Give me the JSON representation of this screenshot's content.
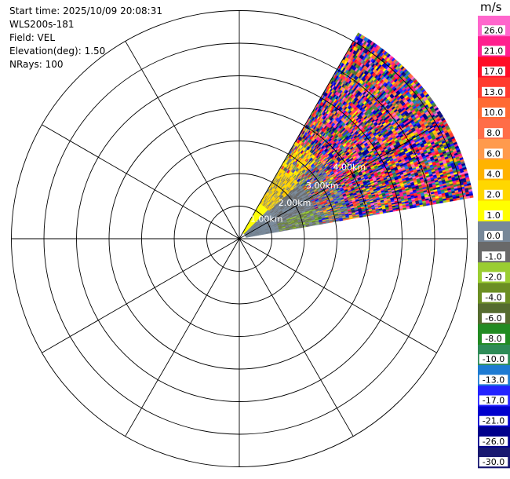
{
  "header": {
    "start_time": "Start time: 2025/10/09 20:08:31",
    "station": "WLS200s-181",
    "field": "Field: VEL",
    "elevation": "Elevation(deg): 1.50",
    "nrays": "NRays: 100"
  },
  "chart_data": {
    "type": "heatmap",
    "projection": "polar-ppi",
    "range_ring_labels": [
      "1.00km",
      "2.00km",
      "3.00km",
      "4.00km"
    ],
    "rings_km": [
      1,
      2,
      3,
      4,
      5,
      6,
      7
    ],
    "spokes_every_deg": 30,
    "sector_azimuth_deg": [
      30,
      80
    ],
    "max_range_km": 7.3,
    "nrays": 100,
    "elevation_deg": 1.5,
    "colorbar": {
      "unit": "m/s",
      "tick_labels": [
        "26.0",
        "21.0",
        "17.0",
        "13.0",
        "10.0",
        "8.0",
        "6.0",
        "4.0",
        "2.0",
        "1.0",
        "0.0",
        "-1.0",
        "-2.0",
        "-4.0",
        "-6.0",
        "-8.0",
        "-10.0",
        "-13.0",
        "-17.0",
        "-21.0",
        "-26.0",
        "-30.0"
      ],
      "bins": [
        {
          "lo": 26,
          "hi": 30,
          "color": "#ff66cc"
        },
        {
          "lo": 21,
          "hi": 26,
          "color": "#ff1f8e"
        },
        {
          "lo": 17,
          "hi": 21,
          "color": "#ff0d26"
        },
        {
          "lo": 13,
          "hi": 17,
          "color": "#ff3b2e"
        },
        {
          "lo": 10,
          "hi": 13,
          "color": "#ff6a33"
        },
        {
          "lo": 8,
          "hi": 10,
          "color": "#ff6d48"
        },
        {
          "lo": 6,
          "hi": 8,
          "color": "#ff9a4d"
        },
        {
          "lo": 4,
          "hi": 6,
          "color": "#ffb300"
        },
        {
          "lo": 2,
          "hi": 4,
          "color": "#ffd700"
        },
        {
          "lo": 1,
          "hi": 2,
          "color": "#ffff00"
        },
        {
          "lo": 0,
          "hi": 1,
          "color": "#778899"
        },
        {
          "lo": -1,
          "hi": 0,
          "color": "#696969"
        },
        {
          "lo": -2,
          "hi": -1,
          "color": "#9acd32"
        },
        {
          "lo": -4,
          "hi": -2,
          "color": "#6b8e23"
        },
        {
          "lo": -6,
          "hi": -4,
          "color": "#556b2f"
        },
        {
          "lo": -8,
          "hi": -6,
          "color": "#228b22"
        },
        {
          "lo": -10,
          "hi": -8,
          "color": "#2e8b57"
        },
        {
          "lo": -13,
          "hi": -10,
          "color": "#1e7bd2"
        },
        {
          "lo": -17,
          "hi": -13,
          "color": "#2323ff"
        },
        {
          "lo": -21,
          "hi": -17,
          "color": "#0000cd"
        },
        {
          "lo": -26,
          "hi": -21,
          "color": "#00008b"
        },
        {
          "lo": -30,
          "hi": -26,
          "color": "#191970"
        }
      ]
    }
  }
}
